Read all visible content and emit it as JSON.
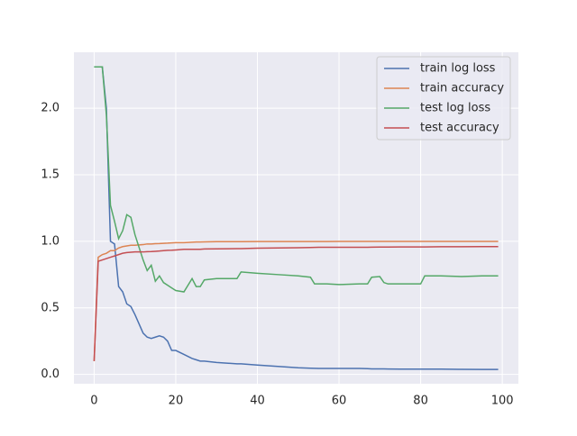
{
  "chart_data": {
    "type": "line",
    "x": [
      0,
      1,
      2,
      3,
      4,
      5,
      6,
      7,
      8,
      9,
      10,
      12,
      13,
      14,
      15,
      16,
      17,
      18,
      19,
      20,
      22,
      24,
      25,
      26,
      27,
      30,
      35,
      36,
      40,
      45,
      50,
      53,
      54,
      55,
      57,
      60,
      65,
      67,
      68,
      70,
      71,
      72,
      75,
      80,
      81,
      85,
      90,
      95,
      99
    ],
    "series": [
      {
        "name": "train log loss",
        "color": "#4c72b0",
        "values": [
          2.31,
          2.31,
          2.31,
          2.0,
          1.0,
          0.98,
          0.66,
          0.62,
          0.53,
          0.51,
          0.45,
          0.31,
          0.28,
          0.27,
          0.28,
          0.29,
          0.28,
          0.25,
          0.18,
          0.18,
          0.15,
          0.12,
          0.11,
          0.1,
          0.1,
          0.09,
          0.08,
          0.08,
          0.07,
          0.06,
          0.05,
          0.047,
          0.046,
          0.045,
          0.045,
          0.045,
          0.045,
          0.043,
          0.042,
          0.042,
          0.042,
          0.041,
          0.04,
          0.04,
          0.04,
          0.04,
          0.038,
          0.037,
          0.037
        ]
      },
      {
        "name": "train accuracy",
        "color": "#dd8452",
        "values": [
          0.1,
          0.88,
          0.9,
          0.91,
          0.93,
          0.93,
          0.95,
          0.96,
          0.965,
          0.97,
          0.97,
          0.975,
          0.98,
          0.98,
          0.982,
          0.983,
          0.985,
          0.986,
          0.988,
          0.99,
          0.99,
          0.993,
          0.995,
          0.995,
          0.996,
          0.997,
          0.997,
          0.997,
          0.998,
          0.998,
          0.998,
          0.998,
          0.998,
          0.998,
          0.998,
          0.999,
          0.999,
          0.999,
          0.999,
          0.999,
          0.999,
          0.999,
          0.999,
          0.999,
          0.999,
          0.999,
          0.999,
          0.999,
          0.999
        ]
      },
      {
        "name": "test log loss",
        "color": "#55a868",
        "values": [
          2.31,
          2.31,
          2.31,
          1.95,
          1.27,
          1.15,
          1.02,
          1.08,
          1.2,
          1.18,
          1.05,
          0.86,
          0.78,
          0.82,
          0.7,
          0.74,
          0.69,
          0.67,
          0.65,
          0.63,
          0.62,
          0.72,
          0.66,
          0.66,
          0.71,
          0.72,
          0.72,
          0.77,
          0.76,
          0.75,
          0.74,
          0.73,
          0.68,
          0.68,
          0.68,
          0.675,
          0.68,
          0.68,
          0.73,
          0.735,
          0.69,
          0.68,
          0.68,
          0.68,
          0.74,
          0.74,
          0.735,
          0.74,
          0.74
        ]
      },
      {
        "name": "test accuracy",
        "color": "#c44e52",
        "values": [
          0.1,
          0.85,
          0.86,
          0.87,
          0.88,
          0.89,
          0.9,
          0.91,
          0.915,
          0.918,
          0.92,
          0.92,
          0.922,
          0.923,
          0.925,
          0.927,
          0.93,
          0.932,
          0.933,
          0.935,
          0.94,
          0.94,
          0.94,
          0.94,
          0.942,
          0.943,
          0.945,
          0.945,
          0.948,
          0.95,
          0.952,
          0.953,
          0.954,
          0.955,
          0.955,
          0.955,
          0.955,
          0.955,
          0.956,
          0.957,
          0.957,
          0.957,
          0.958,
          0.958,
          0.958,
          0.959,
          0.959,
          0.96,
          0.96
        ]
      }
    ],
    "xlim": [
      -4.95,
      103.95
    ],
    "xticks": [
      0,
      20,
      40,
      60,
      80,
      100
    ],
    "ylim": [
      -0.07,
      2.42
    ],
    "yticks": [
      {
        "value": 0,
        "label": "0.0"
      },
      0.5,
      {
        "value": 1,
        "label": "1.0"
      },
      1.5,
      {
        "value": 2,
        "label": "2.0"
      }
    ],
    "grid": true,
    "legend": "upper right"
  }
}
